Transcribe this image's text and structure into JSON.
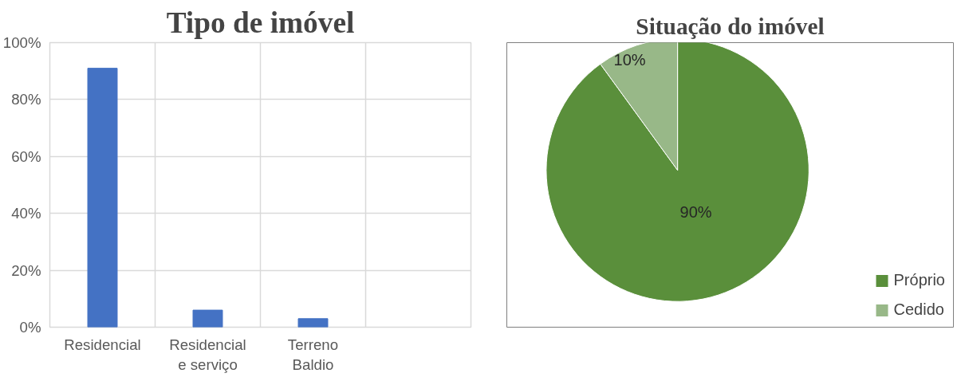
{
  "chart_data": [
    {
      "type": "bar",
      "title": "Tipo de imóvel",
      "categories": [
        "Residencial",
        "Residencial e serviço",
        "Terreno Baldio",
        null
      ],
      "values": [
        91,
        6,
        3,
        null
      ],
      "color": "#4472c4",
      "ylim": [
        0,
        100
      ],
      "yticks": [
        {
          "value": 0,
          "label": "0%"
        },
        {
          "value": 20,
          "label": "20%"
        },
        {
          "value": 40,
          "label": "40%"
        },
        {
          "value": 60,
          "label": "60%"
        },
        {
          "value": 80,
          "label": "80%"
        },
        {
          "value": 100,
          "label": "100%"
        }
      ],
      "grid": true
    },
    {
      "type": "pie",
      "title": "Situação do imóvel",
      "categories": [
        "Próprio",
        "Cedido"
      ],
      "values": [
        90,
        10
      ],
      "colors": [
        "#5a8f3b",
        "#98b888"
      ],
      "value_labels": [
        "90%",
        "10%"
      ],
      "legend": "bottom right"
    }
  ]
}
